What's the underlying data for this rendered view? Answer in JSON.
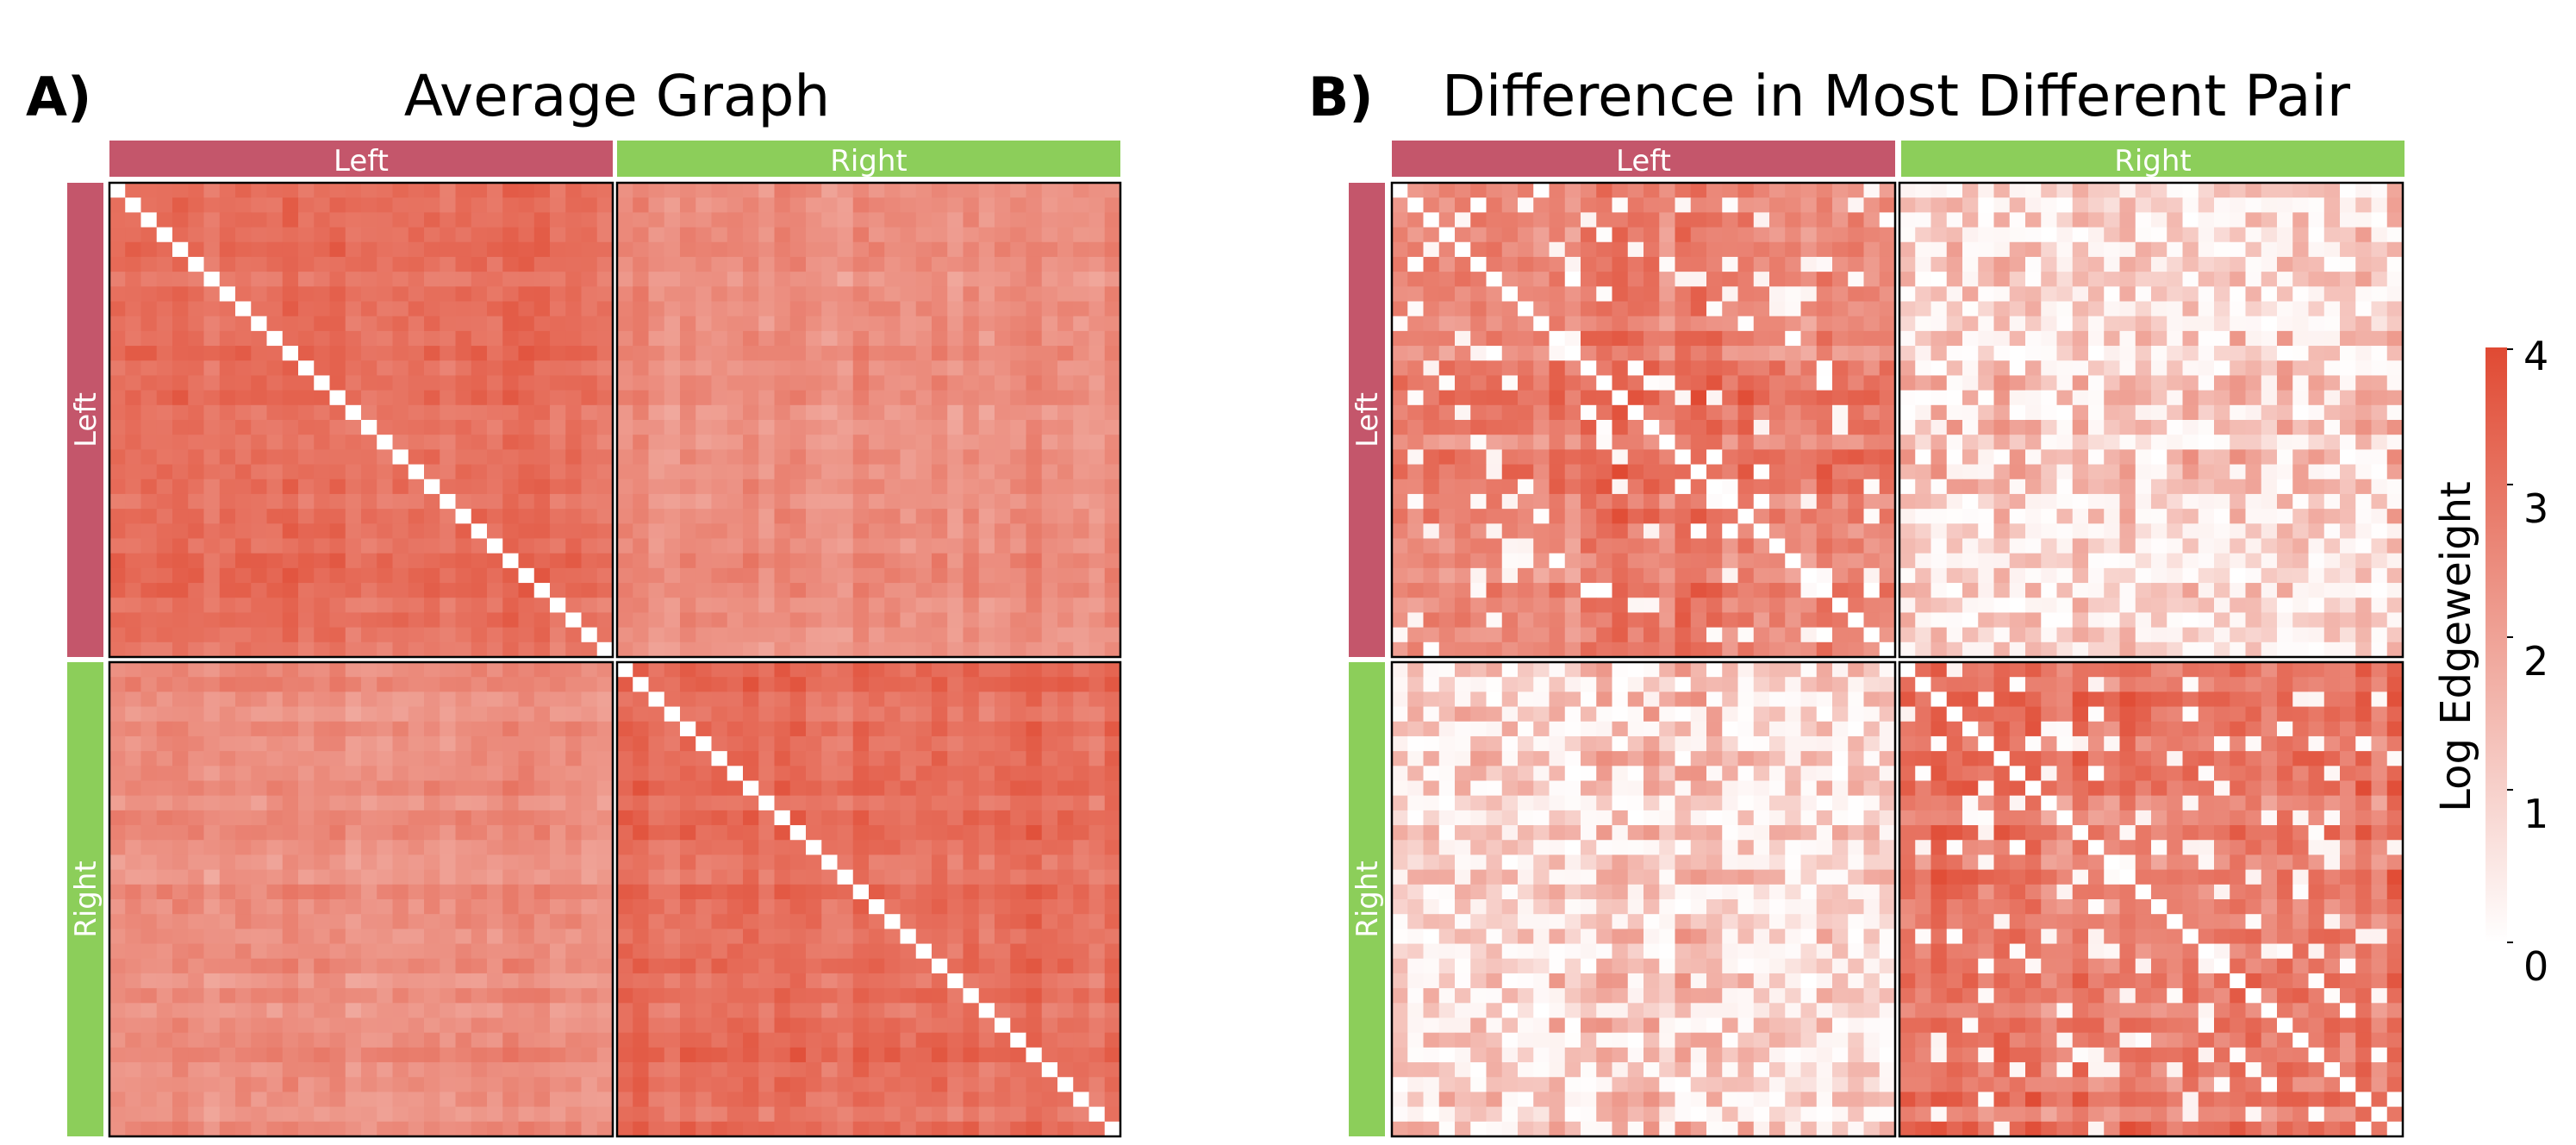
{
  "chart_data": [
    {
      "type": "heatmap",
      "panel_label": "A)",
      "title": "Average Graph",
      "row_groups": [
        "Left",
        "Right"
      ],
      "col_groups": [
        "Left",
        "Right"
      ],
      "nodes_per_group": 32,
      "block_mean": [
        [
          3.2,
          2.5
        ],
        [
          2.5,
          3.2
        ]
      ],
      "diagonal_value": 0,
      "noise": 0.5,
      "white_fraction": 0.0,
      "seed": 11
    },
    {
      "type": "heatmap",
      "panel_label": "B)",
      "title": "Difference in Most Different Pair",
      "row_groups": [
        "Left",
        "Right"
      ],
      "col_groups": [
        "Left",
        "Right"
      ],
      "nodes_per_group": 32,
      "block_mean": [
        [
          3.0,
          1.6
        ],
        [
          1.6,
          3.0
        ]
      ],
      "diagonal_value": 0,
      "noise": 0.9,
      "white_fraction": 0.35,
      "seed": 29
    }
  ],
  "colorbar": {
    "label": "Log Edgeweight",
    "min": 0,
    "max": 4,
    "ticks": [
      "0",
      "1",
      "2",
      "3",
      "4"
    ],
    "color_low": "#ffffff",
    "color_high": "#e04a33"
  },
  "colors": {
    "left_group": "#c4566b",
    "right_group": "#8cce5a",
    "group_text": "#ffffff"
  }
}
